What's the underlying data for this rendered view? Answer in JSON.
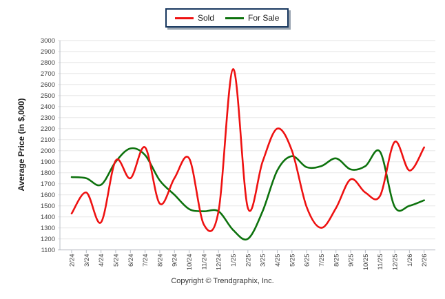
{
  "legend": {
    "items": [
      {
        "label": "Sold",
        "color": "#ee1111"
      },
      {
        "label": "For Sale",
        "color": "#0d720d"
      }
    ]
  },
  "footer": {
    "copyright": "Copyright © Trendgraphix, Inc."
  },
  "colors": {
    "gridline": "#e8e8e8",
    "axis": "#b8bcc4",
    "tick_text": "#444444",
    "legend_border": "#17375e",
    "legend_shadow": "#9aa5b1"
  },
  "chart_data": {
    "type": "line",
    "title": "",
    "xlabel": "",
    "ylabel": "Average Price (in $,000)",
    "ylim": [
      1100,
      3000
    ],
    "ytick_step": 100,
    "grid": "horizontal",
    "legend_position": "top-center",
    "smoothing": "spline",
    "categories": [
      "2/24",
      "3/24",
      "4/24",
      "5/24",
      "6/24",
      "7/24",
      "8/24",
      "9/24",
      "10/24",
      "11/24",
      "12/24",
      "1/25",
      "2/25",
      "3/25",
      "4/25",
      "5/25",
      "6/25",
      "7/25",
      "8/25",
      "9/25",
      "10/25",
      "11/25",
      "12/25",
      "1/26",
      "2/26"
    ],
    "series": [
      {
        "name": "Sold",
        "color": "#ee1111",
        "values": [
          1430,
          1620,
          1350,
          1910,
          1750,
          2030,
          1520,
          1750,
          1930,
          1330,
          1450,
          2740,
          1480,
          1900,
          2200,
          2000,
          1490,
          1300,
          1480,
          1740,
          1620,
          1590,
          2080,
          1820,
          2030
        ]
      },
      {
        "name": "For Sale",
        "color": "#0d720d",
        "values": [
          1760,
          1750,
          1690,
          1900,
          2020,
          1960,
          1730,
          1600,
          1470,
          1450,
          1450,
          1280,
          1200,
          1450,
          1820,
          1950,
          1850,
          1860,
          1930,
          1830,
          1860,
          1990,
          1490,
          1500,
          1550
        ]
      }
    ]
  }
}
